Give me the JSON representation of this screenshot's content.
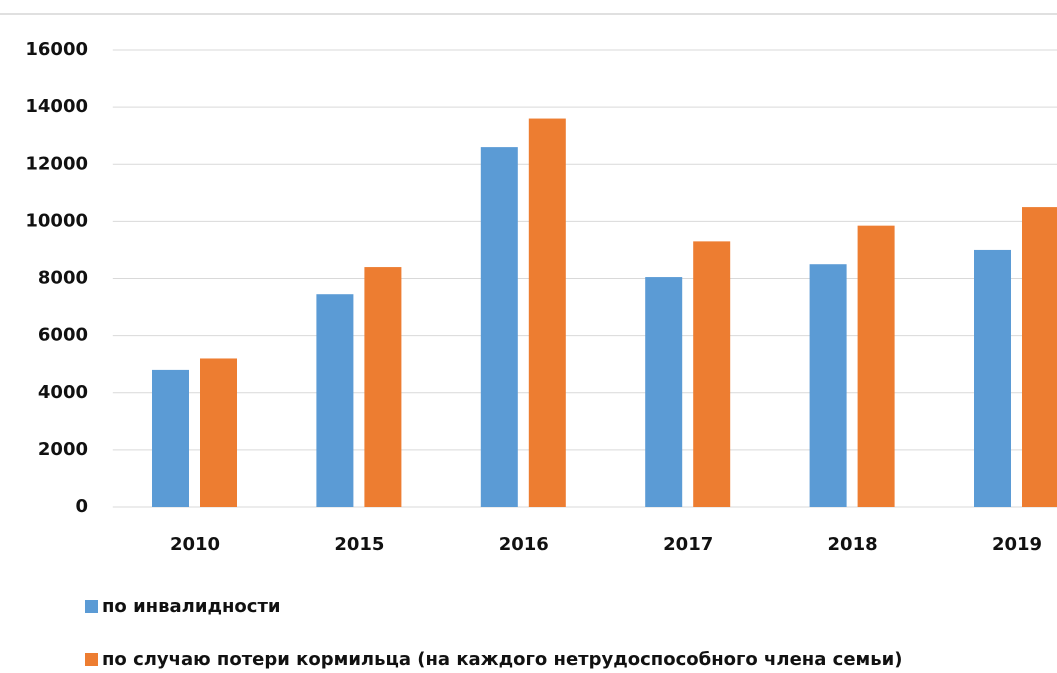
{
  "chart_data": {
    "type": "bar",
    "categories": [
      "2010",
      "2015",
      "2016",
      "2017",
      "2018",
      "2019"
    ],
    "series": [
      {
        "name": "по инвалидности",
        "color": "#5b9bd5",
        "values": [
          4800,
          7450,
          12600,
          8050,
          8500,
          9000
        ]
      },
      {
        "name": "по случаю потери кормильца (на каждого нетрудоспособного члена семьи)",
        "color": "#ed7d31",
        "values": [
          5200,
          8400,
          13600,
          9300,
          9850,
          10500
        ]
      }
    ],
    "ylim": [
      0,
      16000
    ],
    "yticks": [
      0,
      2000,
      4000,
      6000,
      8000,
      10000,
      12000,
      14000,
      16000
    ],
    "grid": true,
    "legend": "bottom"
  }
}
